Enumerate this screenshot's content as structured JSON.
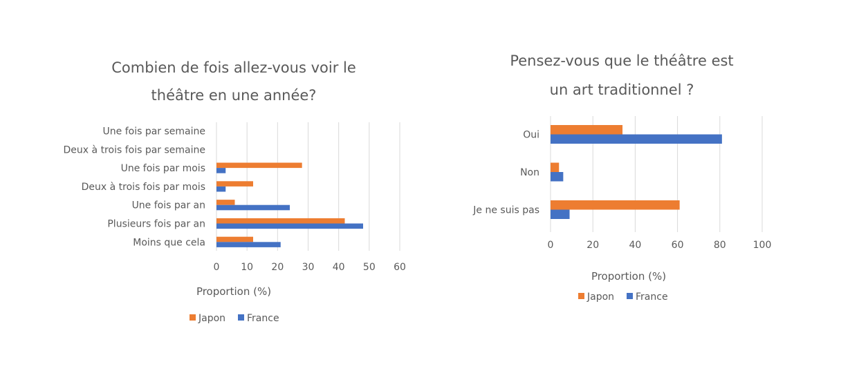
{
  "chart_data": [
    {
      "type": "bar",
      "orientation": "horizontal",
      "title": [
        "Combien de fois allez-vous voir le",
        "théâtre en une année?"
      ],
      "categories": [
        "Une fois par semaine",
        "Deux à trois fois par semaine",
        "Une fois par mois",
        "Deux à trois fois par mois",
        "Une fois par an",
        "Plusieurs fois par an",
        "Moins que cela"
      ],
      "series": [
        {
          "name": "Japon",
          "color": "#ED7D31",
          "values": [
            0,
            0,
            28,
            12,
            6,
            42,
            12
          ]
        },
        {
          "name": "France",
          "color": "#4472C4",
          "values": [
            0,
            0,
            3,
            3,
            24,
            48,
            21
          ]
        }
      ],
      "xlabel": "Proportion (%)",
      "xlim": [
        0,
        60
      ],
      "ticks": [
        0,
        10,
        20,
        30,
        40,
        50,
        60
      ],
      "grid": true,
      "legend": "bottom"
    },
    {
      "type": "bar",
      "orientation": "horizontal",
      "title": [
        "Pensez-vous que le théâtre est",
        "un art traditionnel ?"
      ],
      "categories": [
        "Oui",
        "Non",
        "Je ne suis pas"
      ],
      "series": [
        {
          "name": "Japon",
          "color": "#ED7D31",
          "values": [
            34,
            4,
            61
          ]
        },
        {
          "name": "France",
          "color": "#4472C4",
          "values": [
            81,
            6,
            9
          ]
        }
      ],
      "xlabel": "Proportion (%)",
      "xlim": [
        0,
        100
      ],
      "ticks": [
        0,
        20,
        40,
        60,
        80,
        100
      ],
      "grid": true,
      "legend": "bottom"
    }
  ]
}
